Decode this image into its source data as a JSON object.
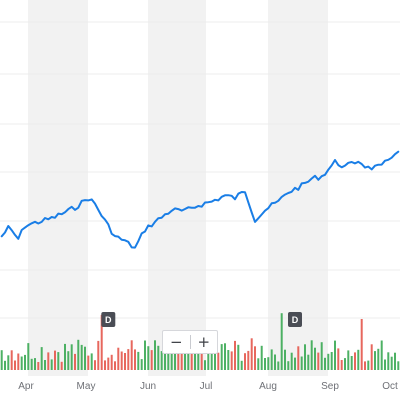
{
  "chart_data": {
    "type": "line",
    "line_color": "#1a7ee6",
    "up_color": "#3aa853",
    "down_color": "#e4574b",
    "band_color": "#f2f2f2",
    "months": [
      "Apr",
      "May",
      "Jun",
      "Jul",
      "Aug",
      "Sep",
      "Oct"
    ],
    "price_anchors": [
      [
        0,
        0.42
      ],
      [
        2,
        0.35
      ],
      [
        5,
        0.44
      ],
      [
        7,
        0.33
      ],
      [
        11,
        0.3
      ],
      [
        15,
        0.27
      ],
      [
        19,
        0.22
      ],
      [
        22,
        0.18
      ],
      [
        26,
        0.1
      ],
      [
        28,
        0.15
      ],
      [
        31,
        0.29
      ],
      [
        34,
        0.42
      ],
      [
        37,
        0.46
      ],
      [
        40,
        0.52
      ],
      [
        43,
        0.36
      ],
      [
        47,
        0.28
      ],
      [
        51,
        0.2
      ],
      [
        55,
        0.21
      ],
      [
        59,
        0.16
      ],
      [
        63,
        0.13
      ],
      [
        67,
        0.08
      ],
      [
        70,
        0.1
      ],
      [
        73,
        0.04
      ],
      [
        76,
        0.28
      ],
      [
        79,
        0.2
      ],
      [
        83,
        0.13
      ],
      [
        86,
        0.05
      ],
      [
        90,
        0.0
      ],
      [
        93,
        -0.06
      ],
      [
        96,
        -0.08
      ],
      [
        100,
        -0.2
      ],
      [
        103,
        -0.16
      ],
      [
        107,
        -0.21
      ],
      [
        110,
        -0.15
      ],
      [
        114,
        -0.16
      ],
      [
        118,
        -0.28
      ],
      [
        119,
        -0.27
      ]
    ],
    "price_noise": 0.022,
    "volume_baseline": 0.55,
    "volume_spikes": [
      [
        30,
        0.95
      ],
      [
        84,
        0.98
      ],
      [
        108,
        0.88
      ]
    ],
    "dividend_markers": [
      {
        "x": 32,
        "label": "D"
      },
      {
        "x": 88,
        "label": "D"
      }
    ]
  },
  "controls": {
    "zoom_out": "−",
    "zoom_in": "+"
  }
}
